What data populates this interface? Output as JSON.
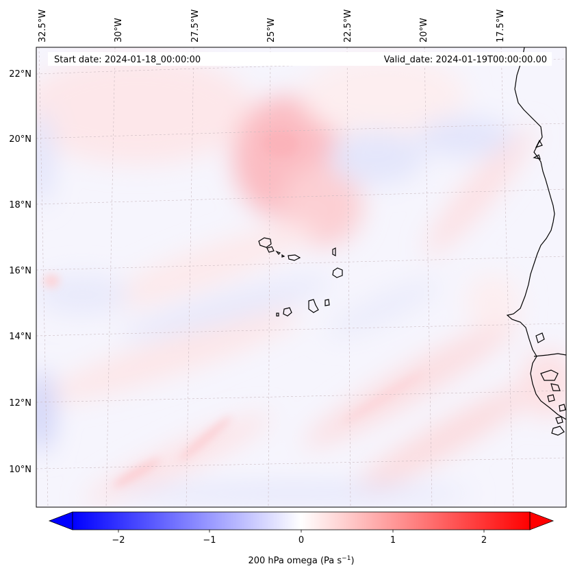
{
  "header": {
    "start_date": "Start date: 2024-01-18_00:00:00",
    "valid_date": "Valid_date: 2024-01-19T00:00:00.00"
  },
  "map": {
    "longitude_labels": [
      "32.5°W",
      "30°W",
      "27.5°W",
      "25°W",
      "22.5°W",
      "20°W",
      "17.5°W"
    ],
    "latitude_labels": [
      "22°N",
      "20°N",
      "18°N",
      "16°N",
      "14°N",
      "12°N",
      "10°N"
    ]
  },
  "colorbar": {
    "ticks": [
      "−2",
      "−1",
      "0",
      "1",
      "2"
    ],
    "label_main": "200 hPa omega (Pa s",
    "label_exp": "−1",
    "label_close": ")",
    "min": -2.5,
    "max": 2.5,
    "negative_color": "#0000ff",
    "zero_color": "#ffffff",
    "positive_color": "#ff0000"
  }
}
